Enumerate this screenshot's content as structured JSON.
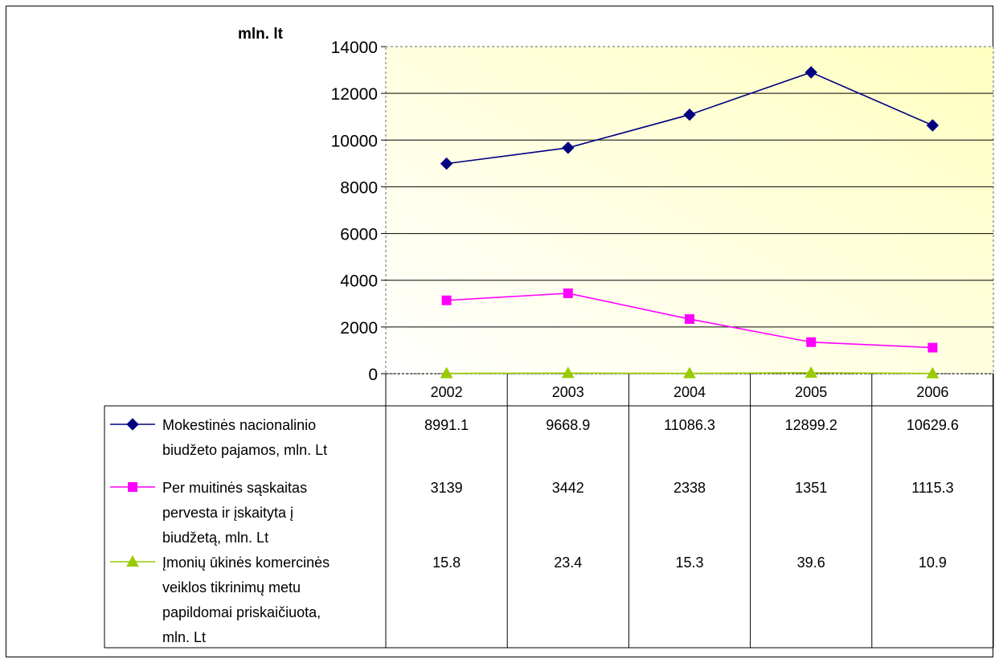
{
  "chart_data": {
    "type": "line",
    "ylabel": "mln. lt",
    "ylim": [
      0,
      14000
    ],
    "yticks": [
      0,
      2000,
      4000,
      6000,
      8000,
      10000,
      12000,
      14000
    ],
    "categories": [
      "2002",
      "2003",
      "2004",
      "2005",
      "2006"
    ],
    "grid": true,
    "legend_placement": "data-table-left",
    "series": [
      {
        "name_lines": [
          "Mokestinės nacionalinio",
          "biudžeto pajamos, mln. Lt"
        ],
        "values": [
          8991.1,
          9668.9,
          11086.3,
          12899.2,
          10629.6
        ],
        "labels": [
          "8991.1",
          "9668.9",
          "11086.3",
          "12899.2",
          "10629.6"
        ],
        "color": "#000080",
        "marker": "diamond"
      },
      {
        "name_lines": [
          "Per muitinės sąskaitas",
          "pervesta ir įskaityta į",
          "biudžetą, mln. Lt"
        ],
        "values": [
          3139,
          3442,
          2338,
          1351,
          1115.3
        ],
        "labels": [
          "3139",
          "3442",
          "2338",
          "1351",
          "1115.3"
        ],
        "color": "#ff00ff",
        "marker": "square"
      },
      {
        "name_lines": [
          "Įmonių ūkinės komercinės",
          "veiklos tikrinimų metu",
          "papildomai priskaičiuota,",
          "mln. Lt"
        ],
        "values": [
          15.8,
          23.4,
          15.3,
          39.6,
          10.9
        ],
        "labels": [
          "15.8",
          "23.4",
          "15.3",
          "39.6",
          "10.9"
        ],
        "color": "#99cc00",
        "marker": "triangle"
      }
    ],
    "colors": {
      "plot_bg_light": "#ffffff",
      "plot_bg_yellow": "#ffffc0"
    }
  }
}
